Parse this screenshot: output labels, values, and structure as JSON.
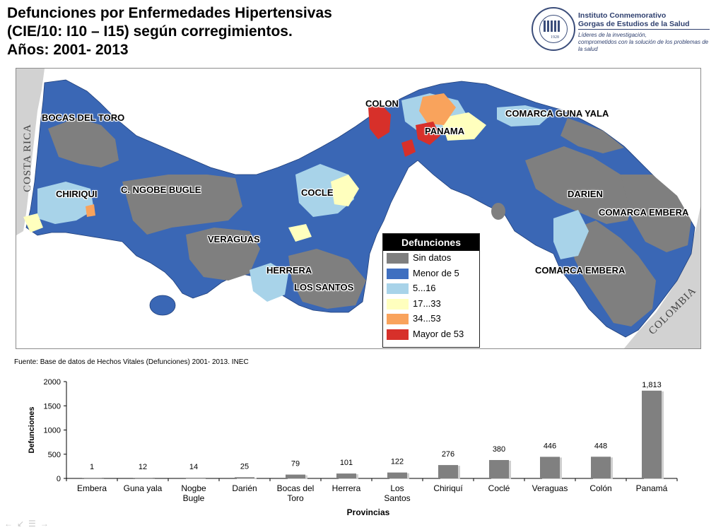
{
  "header": {
    "title_line1": "Defunciones por Enfermedades Hipertensivas",
    "title_line2": "(CIE/10: I10 – I15) según corregimientos.",
    "title_line3": "Años: 2001- 2013"
  },
  "logo": {
    "name_line1": "Instituto Conmemorativo",
    "name_line2": "Gorgas de Estudios de la Salud",
    "tagline_line1": "Líderes de la investigación,",
    "tagline_line2": "comprometidos con la solución de los problemas de la salud",
    "seal_year": "1928",
    "seal_country": "PANAMÁ"
  },
  "map": {
    "country_labels": {
      "west": "COSTA RICA",
      "east": "COLOMBIA"
    },
    "region_labels": {
      "bocas_del_toro": "BOCAS DEL TORO",
      "chiriqui": "CHIRIQUI",
      "ngobe_bugle": "C. NGOBE BUGLE",
      "veraguas": "VERAGUAS",
      "cocle": "COCLE",
      "herrera": "HERRERA",
      "los_santos": "LOS SANTOS",
      "colon": "COLON",
      "panama": "PANAMA",
      "guna_yala": "COMARCA GUNA YALA",
      "darien": "DARIEN",
      "embera_1": "COMARCA EMBERA",
      "embera_2": "COMARCA EMBERA"
    },
    "legend": {
      "title": "Defunciones",
      "items": [
        {
          "label": "Sin datos",
          "color": "#7f7f7f"
        },
        {
          "label": "Menor de 5",
          "color": "#3f6fc0"
        },
        {
          "label": "5...16",
          "color": "#a8d3e9"
        },
        {
          "label": "17...33",
          "color": "#ffffbe"
        },
        {
          "label": "34...53",
          "color": "#f9a35c"
        },
        {
          "label": "Mayor de 53",
          "color": "#d7302a"
        }
      ]
    }
  },
  "source": "Fuente: Base de datos de Hechos Vitales (Defunciones) 2001- 2013. INEC",
  "chart_data": {
    "type": "bar",
    "categories": [
      "Embera",
      "Guna yala",
      "Nogbe Bugle",
      "Darién",
      "Bocas del Toro",
      "Herrera",
      "Los Santos",
      "Chiriquí",
      "Coclé",
      "Veraguas",
      "Colón",
      "Panamá"
    ],
    "values": [
      1,
      12,
      14,
      25,
      79,
      101,
      122,
      276,
      380,
      446,
      448,
      1813
    ],
    "value_labels": [
      "1",
      "12",
      "14",
      "25",
      "79",
      "101",
      "122",
      "276",
      "380",
      "446",
      "448",
      "1,813"
    ],
    "xlabel": "Provincias",
    "ylabel": "Defunciones",
    "ylim": [
      0,
      2000
    ],
    "yticks": [
      0,
      500,
      1000,
      1500,
      2000
    ],
    "bar_color": "#808080",
    "grid": false
  }
}
